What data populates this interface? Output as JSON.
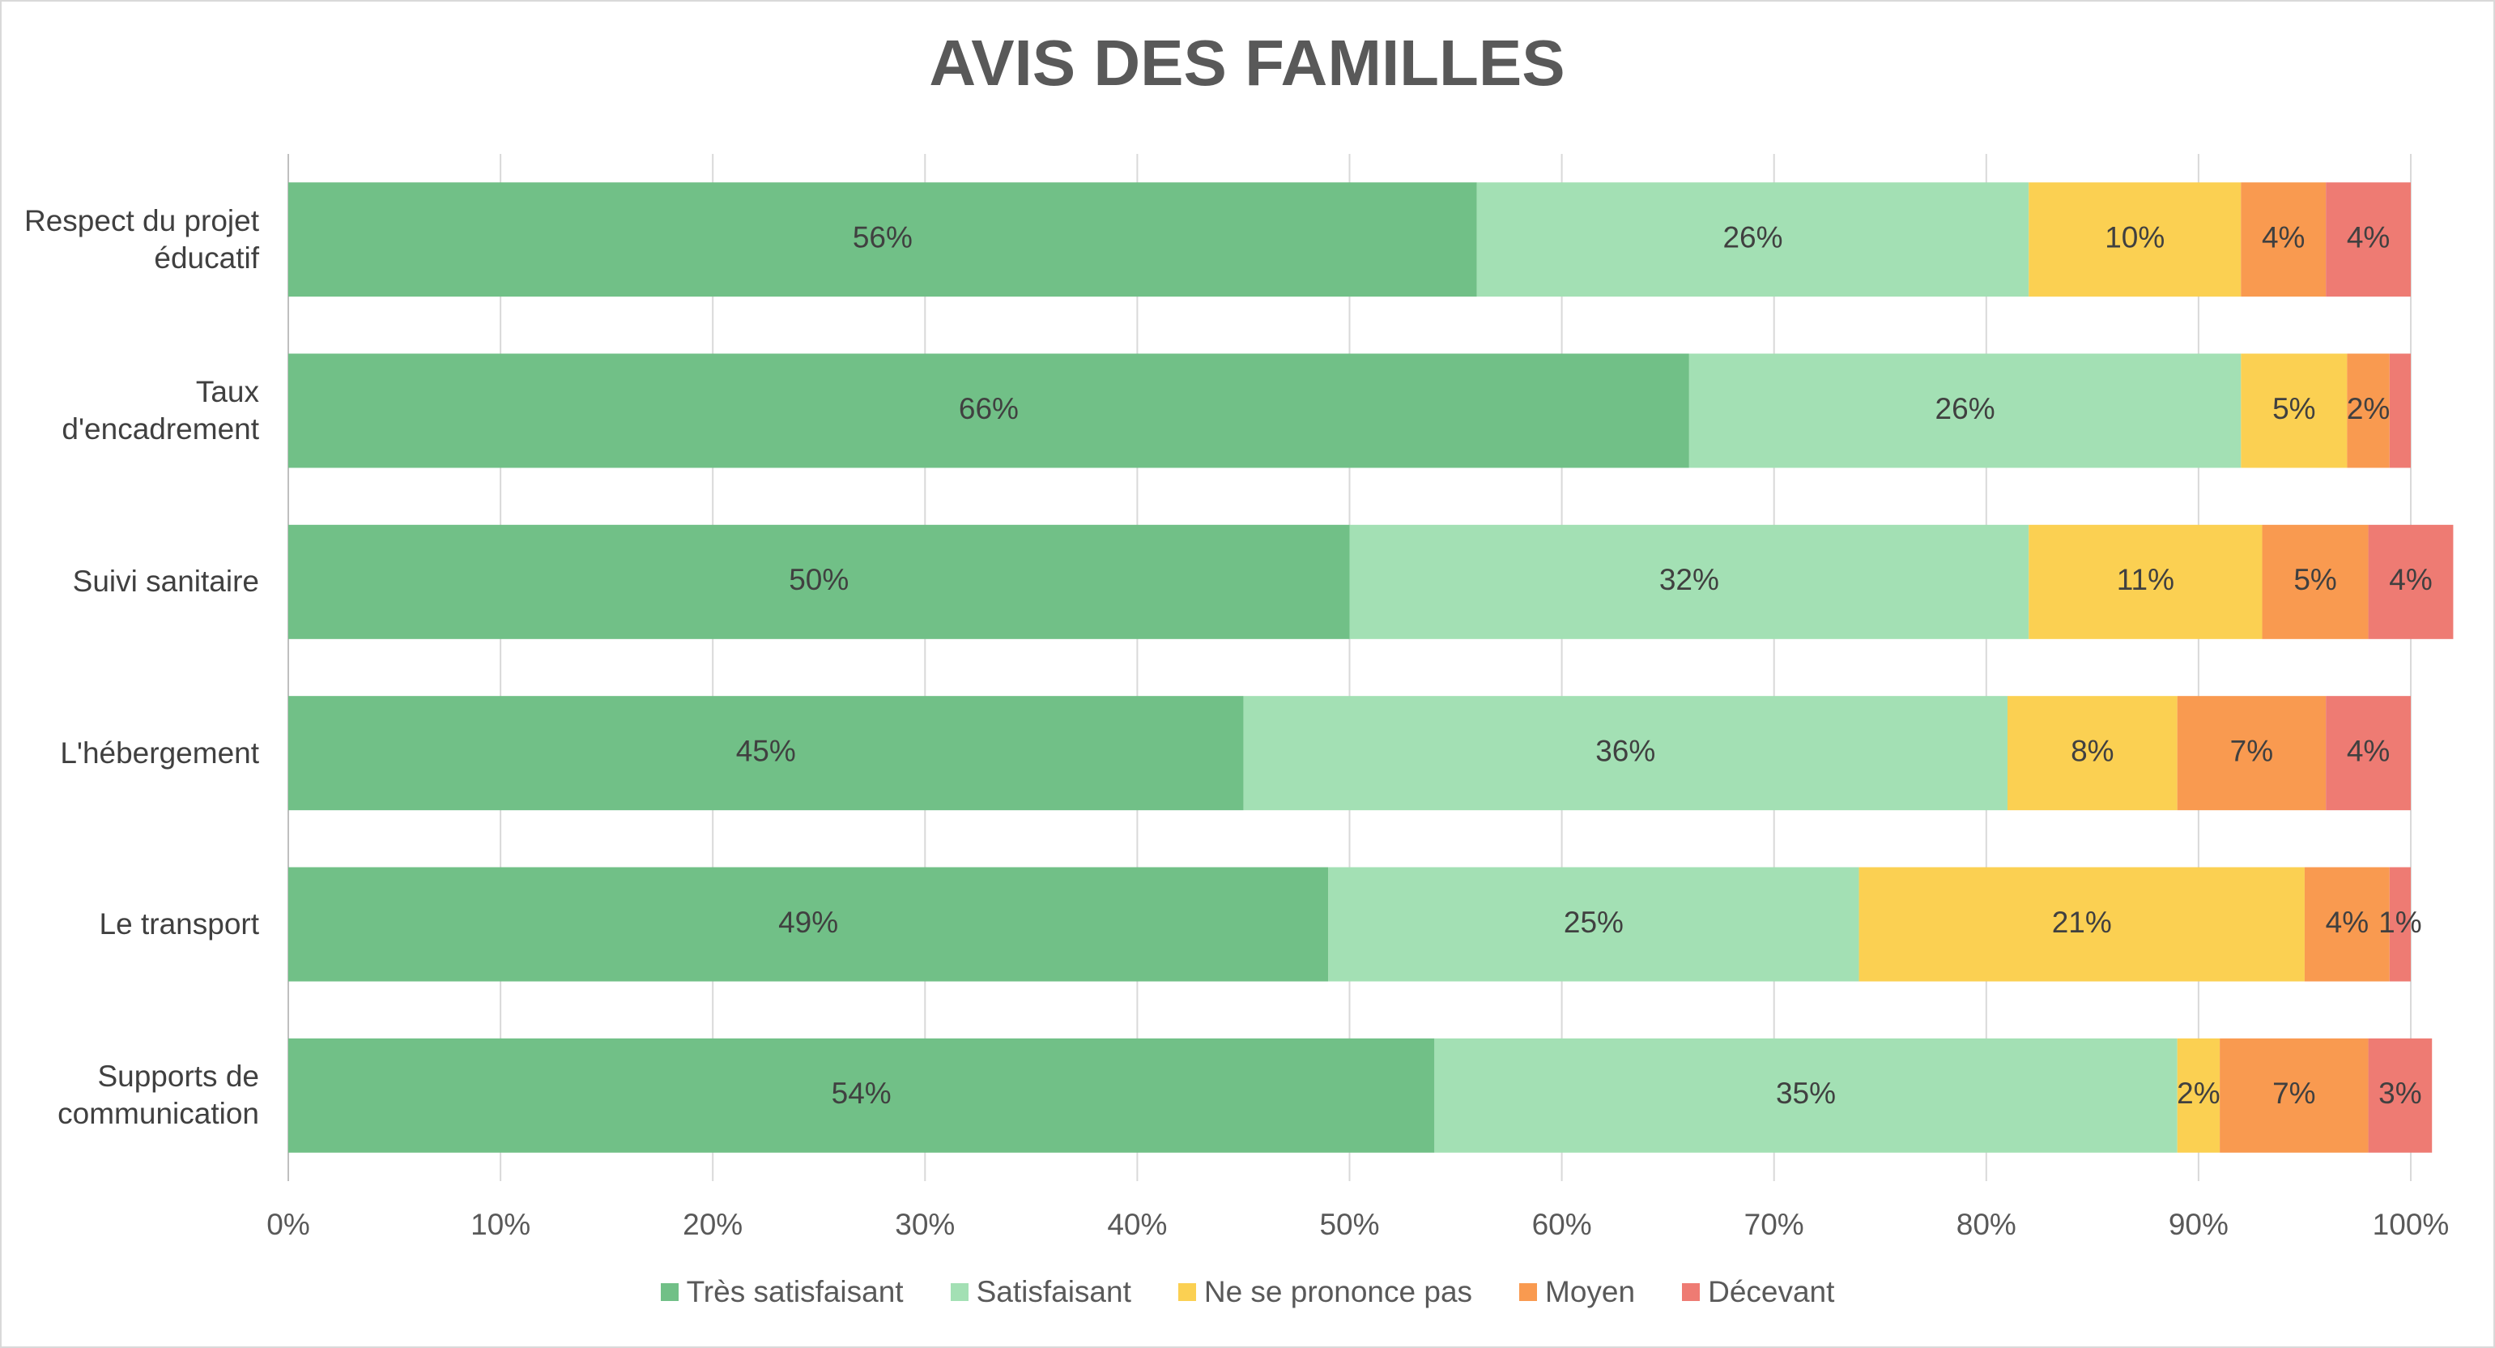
{
  "chart_data": {
    "type": "bar",
    "orientation": "horizontal",
    "stacked": true,
    "title": "AVIS DES FAMILLES",
    "categories": [
      "Respect du projet éducatif",
      "Taux d'encadrement",
      "Suivi sanitaire",
      "L'hébergement",
      "Le transport",
      "Supports de communication"
    ],
    "series": [
      {
        "name": "Très satisfaisant",
        "color": "#71c087",
        "values": [
          56,
          66,
          50,
          45,
          49,
          54
        ],
        "value_labels": [
          "56%",
          "66%",
          "50%",
          "45%",
          "49%",
          "54%"
        ]
      },
      {
        "name": "Satisfaisant",
        "color": "#a3e0b4",
        "values": [
          26,
          26,
          32,
          36,
          25,
          35
        ],
        "value_labels": [
          "26%",
          "26%",
          "32%",
          "36%",
          "25%",
          "35%"
        ]
      },
      {
        "name": "Ne se prononce pas",
        "color": "#fbd052",
        "values": [
          10,
          5,
          11,
          8,
          21,
          2
        ],
        "value_labels": [
          "10%",
          "5%",
          "11%",
          "8%",
          "21%",
          "2%"
        ]
      },
      {
        "name": "Moyen",
        "color": "#f99a50",
        "values": [
          4,
          2,
          5,
          7,
          4,
          7
        ],
        "value_labels": [
          "4%",
          "2%",
          "5%",
          "7%",
          "4%",
          "7%"
        ]
      },
      {
        "name": "Décevant",
        "color": "#ee7b73",
        "values": [
          4,
          1,
          4,
          4,
          1,
          3
        ],
        "value_labels": [
          "4%",
          null,
          "4%",
          "4%",
          "1%",
          "3%"
        ]
      }
    ],
    "xlim": [
      0,
      100
    ],
    "xticks": [
      {
        "value": 0,
        "label": "0%"
      },
      {
        "value": 10,
        "label": "10%"
      },
      {
        "value": 20,
        "label": "20%"
      },
      {
        "value": 30,
        "label": "30%"
      },
      {
        "value": 40,
        "label": "40%"
      },
      {
        "value": 50,
        "label": "50%"
      },
      {
        "value": 60,
        "label": "60%"
      },
      {
        "value": 70,
        "label": "70%"
      },
      {
        "value": 80,
        "label": "80%"
      },
      {
        "value": 90,
        "label": "90%"
      },
      {
        "value": 100,
        "label": "100%"
      }
    ],
    "grid": true,
    "legend": "bottom"
  }
}
